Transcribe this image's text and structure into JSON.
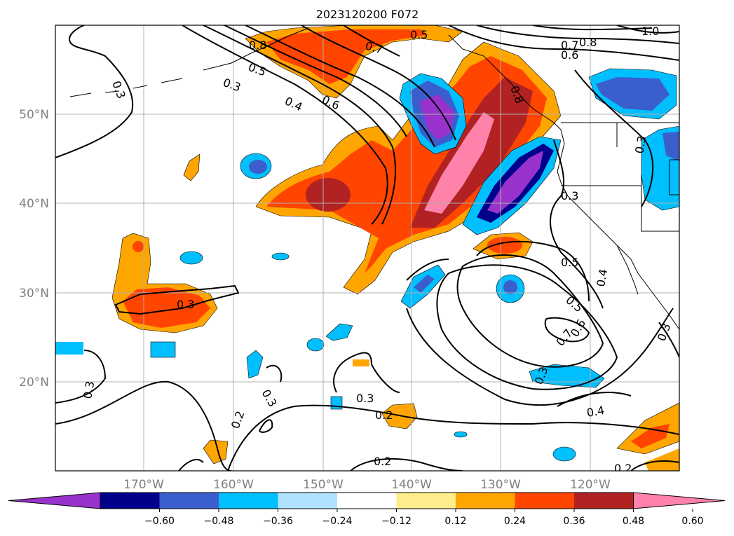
{
  "title": "2023120200 F072",
  "lat_labels": [
    "50°N",
    "40°N",
    "30°N",
    "20°N"
  ],
  "lon_labels": [
    "170°W",
    "160°W",
    "150°W",
    "140°W",
    "130°W",
    "120°W"
  ],
  "colorbar": {
    "ticks": [
      "−0.60",
      "−0.48",
      "−0.36",
      "−0.24",
      "−0.12",
      "0.12",
      "0.24",
      "0.36",
      "0.48",
      "0.60"
    ],
    "colors": [
      "#9932cc",
      "#00008b",
      "#3a5fcd",
      "#00bfff",
      "#b0e2ff",
      "#ffffff",
      "#ffec8b",
      "#ffa500",
      "#ff4500",
      "#b22222",
      "#ff82ab"
    ]
  },
  "contour_labels": [
    "0.3",
    "0.4",
    "0.5",
    "0.6",
    "0.7",
    "0.8",
    "1.0",
    "0.2"
  ]
}
